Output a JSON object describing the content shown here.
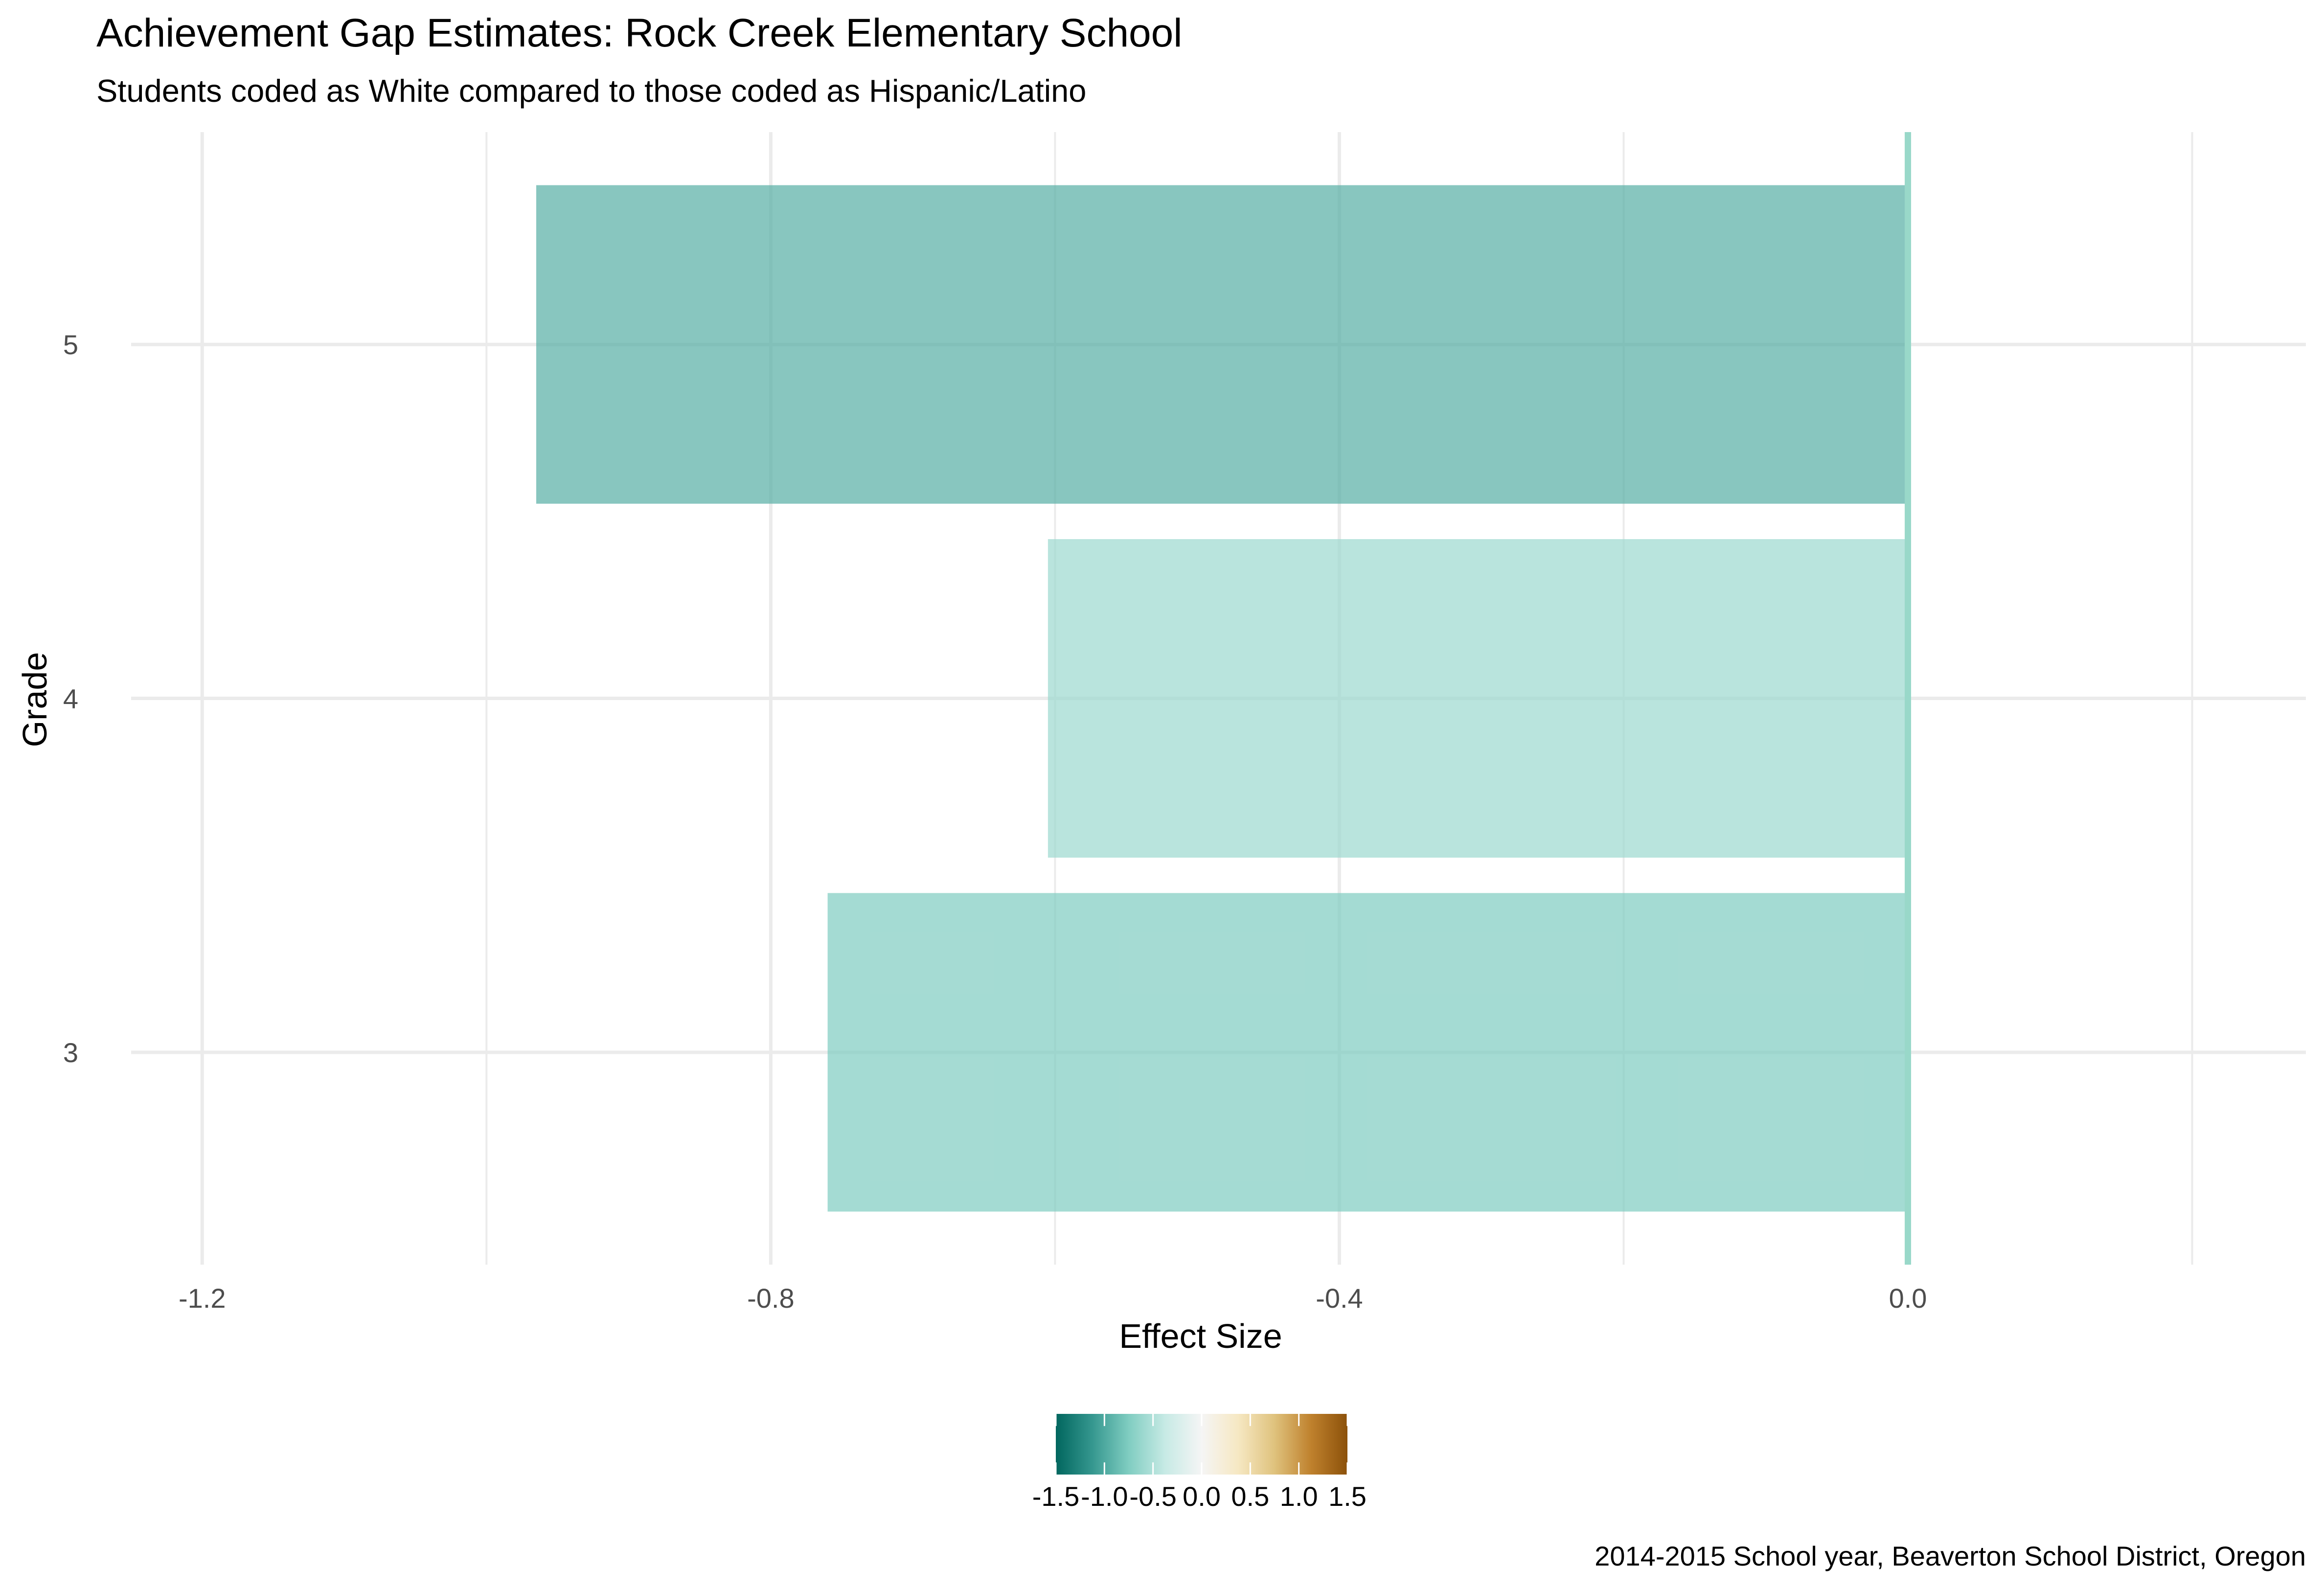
{
  "chart_data": {
    "type": "bar",
    "orientation": "horizontal",
    "title": "Achievement Gap Estimates: Rock Creek Elementary School",
    "subtitle": "Students coded as White compared to those coded as Hispanic/Latino",
    "caption": "2014-2015 School year, Beaverton School District, Oregon",
    "xlabel": "Effect Size",
    "ylabel": "Grade",
    "categories": [
      "3",
      "4",
      "5"
    ],
    "values": [
      -0.76,
      -0.605,
      -0.965
    ],
    "xlim": [
      -1.25,
      0.28
    ],
    "x_ticks": [
      -1.2,
      -0.8,
      -0.4,
      0.0
    ],
    "x_tick_labels": [
      "-1.2",
      "-0.8",
      "-0.4",
      "0.0"
    ],
    "grid": true,
    "reference_line": 0,
    "legend": {
      "type": "colorbar",
      "position": "bottom",
      "range": [
        -1.5,
        1.5
      ],
      "ticks": [
        -1.5,
        -1.0,
        -0.5,
        0.0,
        0.5,
        1.0,
        1.5
      ],
      "tick_labels": [
        "-1.5",
        "-1.0",
        "-0.5",
        "0.0",
        "0.5",
        "1.0",
        "1.5"
      ],
      "palette": [
        "#01665e",
        "#35978f",
        "#80cdc1",
        "#c7eae5",
        "#f5f5f5",
        "#f6e8c3",
        "#dfc27d",
        "#bf812d",
        "#8c510a"
      ]
    },
    "colors": {
      "grid": "#ebebeb",
      "reference_line": "#99d8c9",
      "tick_text": "#4d4d4d"
    }
  }
}
